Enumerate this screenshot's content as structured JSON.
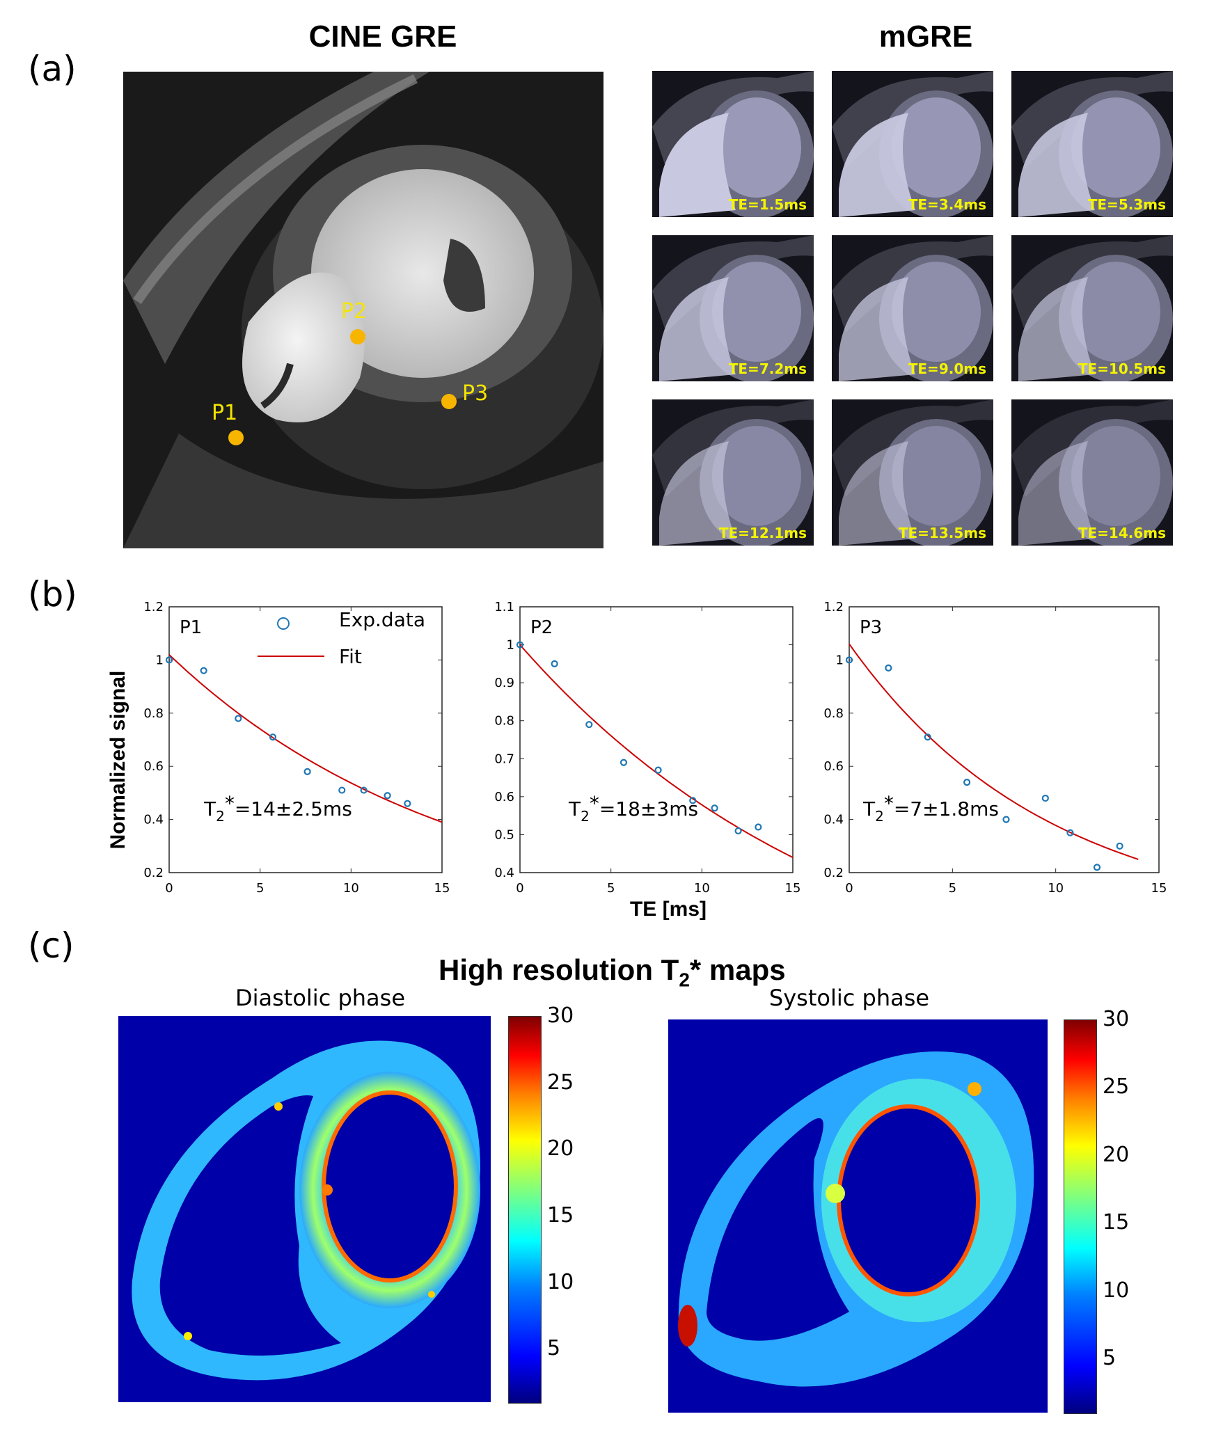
{
  "panel_labels": {
    "a": "(a)",
    "b": "(b)",
    "c": "(c)"
  },
  "panel_a": {
    "cine_title": "CINE GRE",
    "mgre_title": "mGRE",
    "points": [
      {
        "label": "P1",
        "color": "#f7b500"
      },
      {
        "label": "P2",
        "color": "#f7b500"
      },
      {
        "label": "P3",
        "color": "#f7b500"
      }
    ],
    "thumbnails": [
      {
        "te": "TE=1.5ms"
      },
      {
        "te": "TE=3.4ms"
      },
      {
        "te": "TE=5.3ms"
      },
      {
        "te": "TE=7.2ms"
      },
      {
        "te": "TE=9.0ms"
      },
      {
        "te": "TE=10.5ms"
      },
      {
        "te": "TE=12.1ms"
      },
      {
        "te": "TE=13.5ms"
      },
      {
        "te": "TE=14.6ms"
      }
    ]
  },
  "panel_b": {
    "ylabel": "Normalized signal",
    "xlabel": "TE [ms]",
    "legend": {
      "data": "Exp.data",
      "fit": "Fit"
    },
    "marker_color": "#1f77b4",
    "fit_color": "#cc0000"
  },
  "chart_data": [
    {
      "type": "scatter",
      "title": "P1",
      "annotation": "T2*=14±2.5ms",
      "ylim": [
        0.2,
        1.2
      ],
      "xlim": [
        0,
        15
      ],
      "yticks": [
        "0.2",
        "0.4",
        "0.6",
        "0.8",
        "1",
        "1.2"
      ],
      "xticks": [
        "0",
        "5",
        "10",
        "15"
      ],
      "series": [
        {
          "name": "Exp.data",
          "x": [
            0,
            1.9,
            3.8,
            5.7,
            7.6,
            9.5,
            10.7,
            12.0,
            13.1
          ],
          "y": [
            1.0,
            0.96,
            0.78,
            0.71,
            0.58,
            0.51,
            0.51,
            0.49,
            0.46
          ]
        },
        {
          "name": "Fit",
          "x": [
            0,
            15
          ],
          "y": [
            1.02,
            0.39
          ]
        }
      ]
    },
    {
      "type": "scatter",
      "title": "P2",
      "annotation": "T2*=18±3ms",
      "ylim": [
        0.4,
        1.1
      ],
      "xlim": [
        0,
        15
      ],
      "yticks": [
        "0.4",
        "0.5",
        "0.6",
        "0.7",
        "0.8",
        "0.9",
        "1",
        "1.1"
      ],
      "xticks": [
        "0",
        "5",
        "10",
        "15"
      ],
      "series": [
        {
          "name": "Exp.data",
          "x": [
            0,
            1.9,
            3.8,
            5.7,
            7.6,
            9.5,
            10.7,
            12.0,
            13.1
          ],
          "y": [
            1.0,
            0.95,
            0.79,
            0.69,
            0.67,
            0.59,
            0.57,
            0.51,
            0.52
          ]
        },
        {
          "name": "Fit",
          "x": [
            0,
            15
          ],
          "y": [
            1.0,
            0.44
          ]
        }
      ]
    },
    {
      "type": "scatter",
      "title": "P3",
      "annotation": "T2*=7±1.8ms",
      "ylim": [
        0.2,
        1.2
      ],
      "xlim": [
        0,
        15
      ],
      "yticks": [
        "0.2",
        "0.4",
        "0.6",
        "0.8",
        "1",
        "1.2"
      ],
      "xticks": [
        "0",
        "5",
        "10",
        "15"
      ],
      "series": [
        {
          "name": "Exp.data",
          "x": [
            0,
            1.9,
            3.8,
            5.7,
            7.6,
            9.5,
            10.7,
            12.0,
            13.1
          ],
          "y": [
            1.0,
            0.97,
            0.71,
            0.54,
            0.4,
            0.48,
            0.35,
            0.22,
            0.3
          ]
        },
        {
          "name": "Fit",
          "x": [
            0,
            14
          ],
          "y": [
            1.06,
            0.25
          ]
        }
      ]
    }
  ],
  "panel_c": {
    "title_main": "High resolution T",
    "title_sub": "2",
    "title_end": "* maps",
    "diastolic": "Diastolic phase",
    "systolic": "Systolic phase",
    "colorbar_ticks": [
      "30",
      "25",
      "20",
      "15",
      "10",
      "5"
    ],
    "colorbar_range": [
      1,
      30
    ]
  }
}
